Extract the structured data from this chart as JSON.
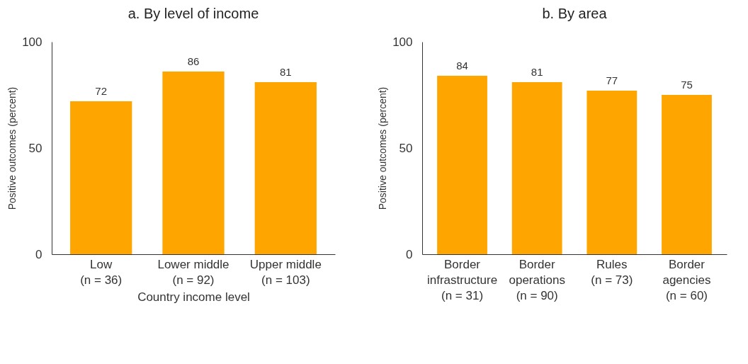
{
  "chart_data": [
    {
      "type": "bar",
      "title": "a. By level of income",
      "categories": [
        "Low\n(n = 36)",
        "Lower middle\n(n = 92)",
        "Upper middle\n(n = 103)"
      ],
      "xlabel": "Country income level",
      "ylabel": "Positive outcomes (percent)",
      "series": [
        {
          "color": "#ffa500",
          "values": [
            72,
            86,
            81
          ]
        }
      ],
      "ylim": [
        0,
        100
      ],
      "yticks": [
        0,
        50,
        100
      ],
      "grid": false,
      "data_labels": true
    },
    {
      "type": "bar",
      "title": "b. By area",
      "categories": [
        "Border\ninfrastructure\n(n = 31)",
        "Border\noperations\n(n = 90)",
        "Rules\n(n = 73)",
        "Border\nagencies\n(n = 60)"
      ],
      "ylabel": "Positive outcomes (percent)",
      "series": [
        {
          "color": "#ffa500",
          "values": [
            84,
            81,
            77,
            75
          ]
        }
      ],
      "ylim": [
        0,
        100
      ],
      "yticks": [
        0,
        50,
        100
      ],
      "grid": false,
      "data_labels": true
    }
  ]
}
